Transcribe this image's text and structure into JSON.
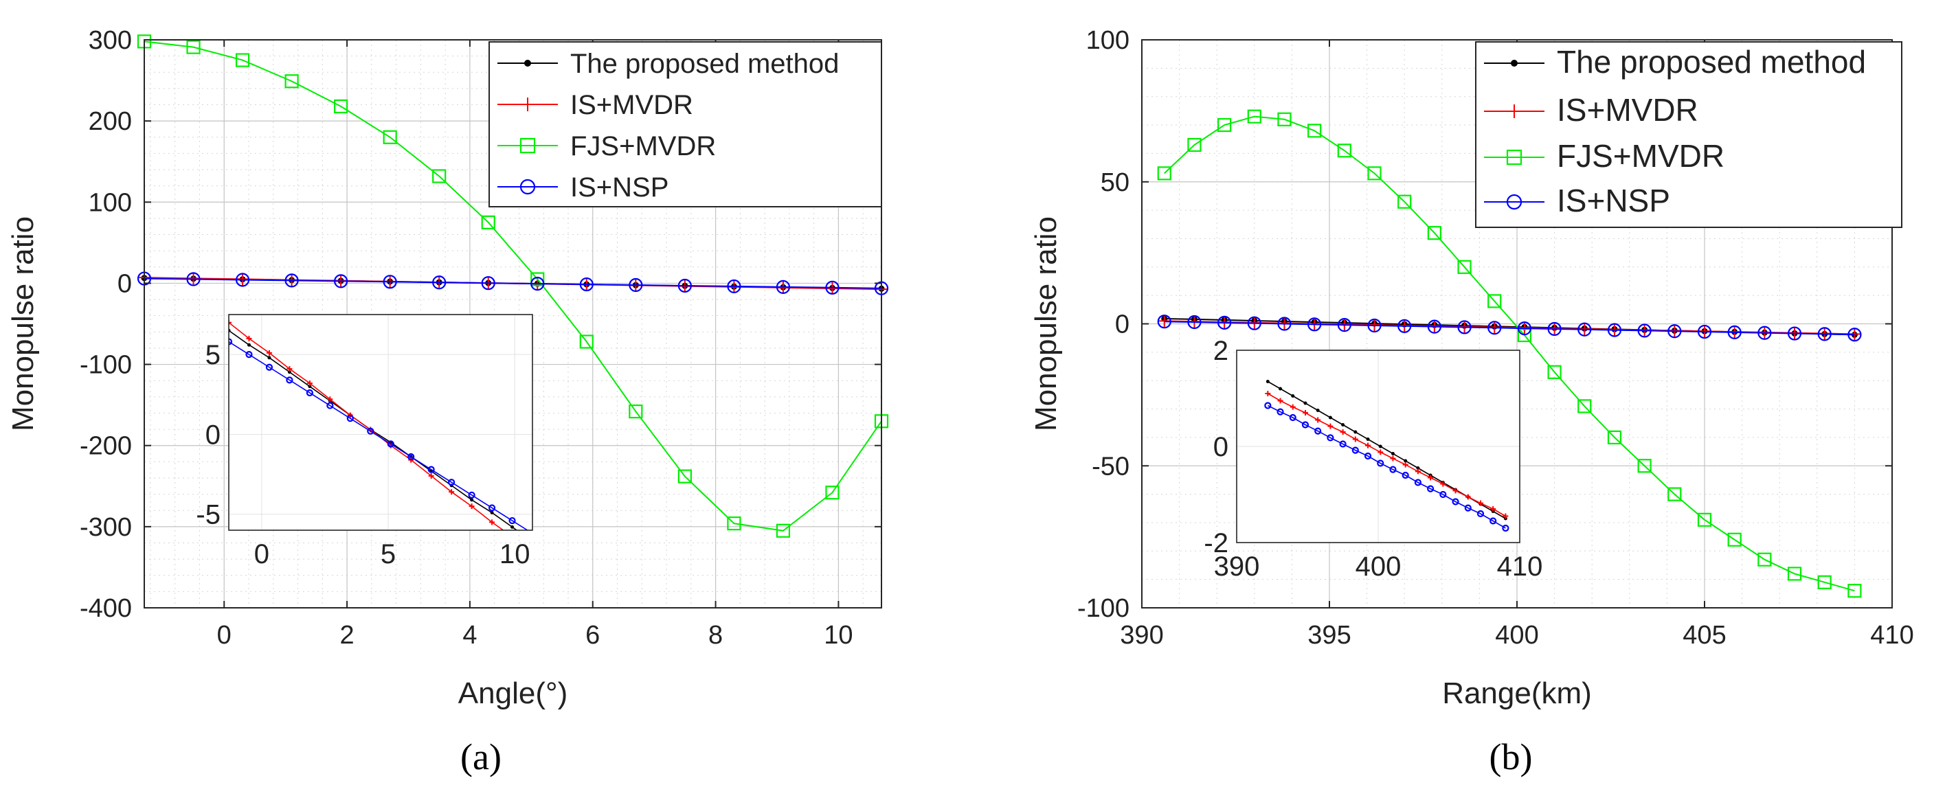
{
  "chart_data": [
    {
      "type": "line",
      "caption": "(a)",
      "xlabel": "Angle(°)",
      "ylabel": "Monopulse ratio",
      "xlim": [
        -1.3,
        10.7
      ],
      "ylim": [
        -400,
        300
      ],
      "xticks": [
        0,
        2,
        4,
        6,
        8,
        10
      ],
      "xtick_labels": [
        "0",
        "2",
        "4",
        "6",
        "8",
        "10"
      ],
      "yticks": [
        -400,
        -300,
        -200,
        -100,
        0,
        100,
        200,
        300
      ],
      "ytick_labels": [
        "-400",
        "-300",
        "-200",
        "-100",
        "0",
        "100",
        "200",
        "300"
      ],
      "grid": true,
      "legend_position": "top-right",
      "x": [
        -1.3,
        -0.5,
        0.3,
        1.1,
        1.9,
        2.7,
        3.5,
        4.3,
        5.1,
        5.9,
        6.7,
        7.5,
        8.3,
        9.1,
        9.9,
        10.7
      ],
      "series": [
        {
          "name": "The proposed method",
          "color": "#000000",
          "marker": "dot",
          "values": [
            6.5,
            5.6,
            4.8,
            3.9,
            3.0,
            2.1,
            1.2,
            0.3,
            -0.5,
            -1.4,
            -2.3,
            -3.2,
            -4.1,
            -4.9,
            -5.8,
            -6.7
          ]
        },
        {
          "name": "IS+MVDR",
          "color": "#ff0000",
          "marker": "plus",
          "values": [
            7.0,
            6.0,
            5.1,
            4.1,
            3.2,
            2.2,
            1.2,
            0.3,
            -0.7,
            -1.6,
            -2.6,
            -3.6,
            -4.5,
            -5.5,
            -6.4,
            -7.4
          ]
        },
        {
          "name": "FJS+MVDR",
          "color": "#00ee00",
          "marker": "square",
          "values": [
            298,
            291,
            275,
            249,
            218,
            180,
            132,
            75,
            5,
            -72,
            -158,
            -238,
            -296,
            -305,
            -258,
            -170
          ]
        },
        {
          "name": "IS+NSP",
          "color": "#0000ff",
          "marker": "circle",
          "values": [
            5.8,
            5.0,
            4.2,
            3.4,
            2.6,
            1.8,
            1.0,
            0.2,
            -0.6,
            -1.4,
            -2.2,
            -3.0,
            -3.8,
            -4.6,
            -5.4,
            -6.2
          ]
        }
      ],
      "inset": {
        "xlim": [
          -1.3,
          10.7
        ],
        "ylim": [
          -6,
          7.5
        ],
        "xticks": [
          0,
          5,
          10
        ],
        "xtick_labels": [
          "0",
          "5",
          "10"
        ],
        "yticks": [
          -5,
          0,
          5
        ],
        "ytick_labels": [
          "-5",
          "0",
          "5"
        ]
      }
    },
    {
      "type": "line",
      "caption": "(b)",
      "xlabel": "Range(km)",
      "ylabel": "Monopulse ratio",
      "xlim": [
        390,
        410
      ],
      "ylim": [
        -100,
        100
      ],
      "xticks": [
        390,
        395,
        400,
        405,
        410
      ],
      "xtick_labels": [
        "390",
        "395",
        "400",
        "405",
        "410"
      ],
      "yticks": [
        -100,
        -50,
        0,
        50,
        100
      ],
      "ytick_labels": [
        "-100",
        "-50",
        "0",
        "50",
        "100"
      ],
      "grid": true,
      "legend_position": "top-right",
      "x": [
        390.6,
        391.4,
        392.2,
        393.0,
        393.8,
        394.6,
        395.4,
        396.2,
        397.0,
        397.8,
        398.6,
        399.4,
        400.2,
        401.0,
        401.8,
        402.6,
        403.4,
        404.2,
        405.0,
        405.8,
        406.6,
        407.4,
        408.2,
        409.0
      ],
      "series": [
        {
          "name": "The proposed method",
          "color": "#000000",
          "marker": "dot",
          "values": [
            1.8,
            1.6,
            1.35,
            1.1,
            0.85,
            0.6,
            0.35,
            0.1,
            -0.15,
            -0.4,
            -0.65,
            -0.9,
            -1.15,
            -1.4,
            -1.65,
            -1.9,
            -2.15,
            -2.4,
            -2.6,
            -2.85,
            -3.1,
            -3.35,
            -3.6,
            -3.85
          ]
        },
        {
          "name": "IS+MVDR",
          "color": "#ff0000",
          "marker": "plus",
          "values": [
            1.0,
            0.8,
            0.6,
            0.4,
            0.2,
            0.0,
            -0.2,
            -0.4,
            -0.6,
            -0.8,
            -1.0,
            -1.2,
            -1.4,
            -1.6,
            -1.8,
            -2.0,
            -2.2,
            -2.4,
            -2.6,
            -2.8,
            -3.0,
            -3.2,
            -3.4,
            -3.6
          ]
        },
        {
          "name": "FJS+MVDR",
          "color": "#00ee00",
          "marker": "square",
          "values": [
            53,
            63,
            70,
            73,
            72,
            68,
            61,
            53,
            43,
            32,
            20,
            8,
            -4,
            -17,
            -29,
            -40,
            -50,
            -60,
            -69,
            -76,
            -83,
            -88,
            -91,
            -94
          ]
        },
        {
          "name": "IS+NSP",
          "color": "#0000ff",
          "marker": "circle",
          "values": [
            0.8,
            0.6,
            0.4,
            0.2,
            0.0,
            -0.2,
            -0.4,
            -0.6,
            -0.8,
            -1.0,
            -1.2,
            -1.4,
            -1.6,
            -1.8,
            -2.0,
            -2.2,
            -2.4,
            -2.6,
            -2.8,
            -3.0,
            -3.2,
            -3.4,
            -3.6,
            -3.8
          ]
        }
      ],
      "inset": {
        "xlim": [
          390,
          410
        ],
        "ylim": [
          -2,
          2
        ],
        "xticks": [
          390,
          400,
          410
        ],
        "xtick_labels": [
          "390",
          "400",
          "410"
        ],
        "yticks": [
          -2,
          0,
          2
        ],
        "ytick_labels": [
          "-2",
          "0",
          "2"
        ],
        "series_values": [
          [
            1.35,
            1.2,
            1.05,
            0.9,
            0.75,
            0.6,
            0.45,
            0.3,
            0.15,
            0.0,
            -0.15,
            -0.3,
            -0.45,
            -0.6,
            -0.75,
            -0.9,
            -1.05,
            -1.2,
            -1.35,
            -1.5
          ],
          [
            1.1,
            0.95,
            0.82,
            0.7,
            0.55,
            0.42,
            0.3,
            0.15,
            0.02,
            -0.12,
            -0.25,
            -0.38,
            -0.52,
            -0.65,
            -0.78,
            -0.92,
            -1.05,
            -1.18,
            -1.3,
            -1.45
          ],
          null,
          [
            0.85,
            0.72,
            0.6,
            0.45,
            0.32,
            0.18,
            0.05,
            -0.08,
            -0.2,
            -0.35,
            -0.48,
            -0.6,
            -0.75,
            -0.88,
            -1.0,
            -1.15,
            -1.28,
            -1.4,
            -1.55,
            -1.7
          ]
        ]
      }
    }
  ]
}
